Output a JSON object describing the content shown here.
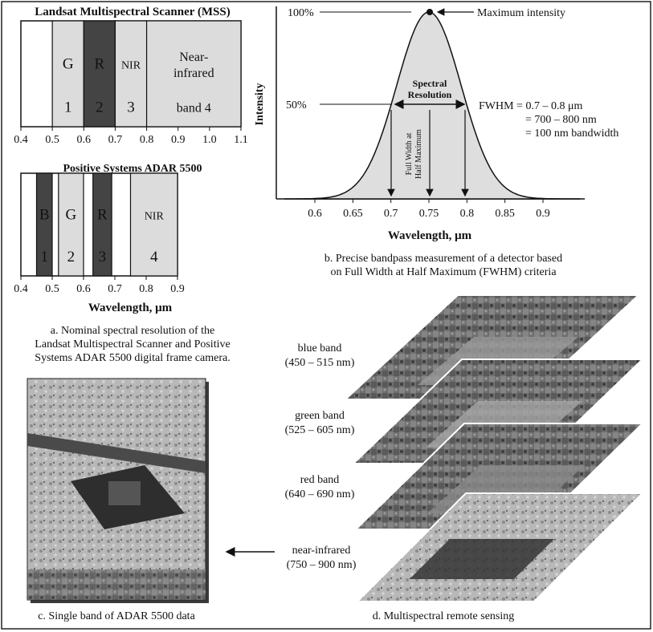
{
  "panel_a": {
    "mss_title": "Landsat Multispectral Scanner (MSS)",
    "mss_bands": [
      {
        "band": "G",
        "number": "1",
        "range": [
          0.5,
          0.6
        ],
        "tone": "light"
      },
      {
        "band": "R",
        "number": "2",
        "range": [
          0.6,
          0.7
        ],
        "tone": "dark"
      },
      {
        "band": "NIR",
        "number": "3",
        "range": [
          0.7,
          0.8
        ],
        "tone": "light"
      },
      {
        "band": "Near-",
        "band2": "infrared",
        "number": "band 4",
        "range": [
          0.8,
          1.1
        ],
        "tone": "light"
      }
    ],
    "mss_ticks": [
      "0.4",
      "0.5",
      "0.6",
      "0.7",
      "0.8",
      "0.9",
      "1.0",
      "1.1"
    ],
    "adar_title": "Positive Systems ADAR 5500",
    "adar_bands": [
      {
        "band": "B",
        "number": "1",
        "range": [
          0.45,
          0.5
        ],
        "tone": "dark"
      },
      {
        "band": "G",
        "number": "2",
        "range": [
          0.52,
          0.6
        ],
        "tone": "light"
      },
      {
        "band": "R",
        "number": "3",
        "range": [
          0.63,
          0.69
        ],
        "tone": "dark"
      },
      {
        "band": "NIR",
        "number": "4",
        "range": [
          0.75,
          0.9
        ],
        "tone": "light"
      }
    ],
    "adar_ticks": [
      "0.4",
      "0.5",
      "0.6",
      "0.7",
      "0.8",
      "0.9"
    ],
    "xlabel": "Wavelength, μm",
    "caption_lines": [
      "a. Nominal spectral resolution of the",
      "Landsat Multispectral Scanner and Positive",
      "Systems ADAR 5500 digital frame camera."
    ]
  },
  "panel_b": {
    "ylabel": "Intensity",
    "y100": "100%",
    "y50": "50%",
    "max_label": "Maximum intensity",
    "spectral_res_1": "Spectral",
    "spectral_res_2": "Resolution",
    "fwhm_1": "Full Width at",
    "fwhm_2": "Half Maximum",
    "fwhm_eq_1": "FWHM = 0.7 – 0.8 μm",
    "fwhm_eq_2": "= 700 – 800 nm",
    "fwhm_eq_3": "= 100 nm bandwidth",
    "xticks": [
      "0.6",
      "0.65",
      "0.7",
      "0.75",
      "0.8",
      "0.85",
      "0.9"
    ],
    "xlabel": "Wavelength, μm",
    "caption_lines": [
      "b. Precise bandpass measurement of a detector based",
      "on Full Width at Half Maximum (FWHM) criteria"
    ]
  },
  "panel_c": {
    "caption": "c. Single band of ADAR 5500 data"
  },
  "panel_d": {
    "bands": [
      {
        "name": "blue band",
        "range": "(450 – 515  nm)"
      },
      {
        "name": "green band",
        "range": "(525 – 605  nm)"
      },
      {
        "name": "red band",
        "range": "(640 – 690  nm)"
      },
      {
        "name": "near-infrared",
        "range": "(750 – 900  nm)"
      }
    ],
    "caption": "d. Multispectral remote sensing"
  },
  "colors": {
    "dark_band": "#444444",
    "light_band": "#dcdcdc",
    "curve_fill": "#dedede",
    "frame": "#222222"
  }
}
